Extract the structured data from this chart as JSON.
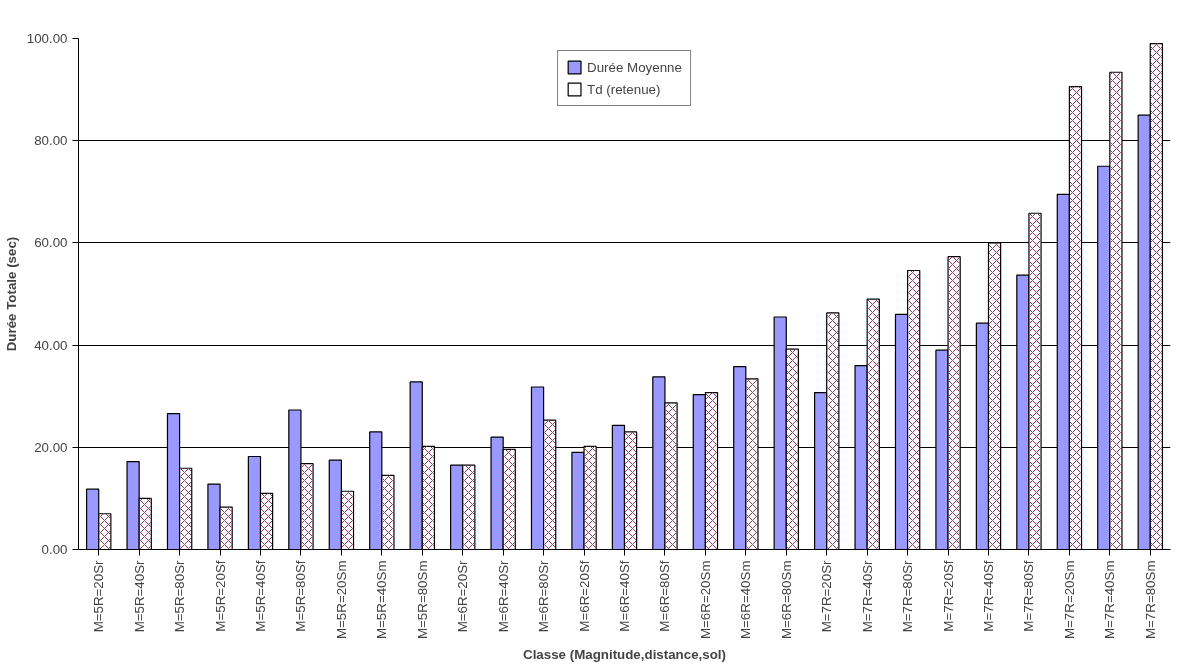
{
  "chart_data": {
    "type": "bar",
    "xlabel": "Classe (Magnitude,distance,sol)",
    "ylabel": "Durée Totale (sec)",
    "categories": [
      "M=5R=20Sr",
      "M=5R=40Sr",
      "M=5R=80Sr",
      "M=5R=20Sf",
      "M=5R=40Sf",
      "M=5R=80Sf",
      "M=5R=20Sm",
      "M=5R=40Sm",
      "M=5R=80Sm",
      "M=6R=20Sr",
      "M=6R=40Sr",
      "M=6R=80Sr",
      "M=6R=20Sf",
      "M=6R=40Sf",
      "M=6R=80Sf",
      "M=6R=20Sm",
      "M=6R=40Sm",
      "M=6R=80Sm",
      "M=7R=20Sr",
      "M=7R=40Sr",
      "M=7R=80Sr",
      "M=7R=20Sf",
      "M=7R=40Sf",
      "M=7R=80Sf",
      "M=7R=20Sm",
      "M=7R=40Sm",
      "M=7R=80Sm"
    ],
    "series": [
      {
        "name": "Durée Moyenne",
        "color": "#9999ff",
        "values": [
          11.8,
          17.2,
          26.6,
          12.8,
          18.2,
          27.3,
          17.5,
          23.0,
          32.8,
          16.5,
          22.0,
          31.8,
          19.0,
          24.3,
          33.8,
          30.3,
          35.8,
          45.5,
          30.7,
          36.0,
          46.0,
          39.0,
          44.3,
          53.7,
          69.5,
          75.0,
          85.0
        ]
      },
      {
        "name": "Td (retenue)",
        "color": "#ffffff",
        "values": [
          7.0,
          10.0,
          15.9,
          8.3,
          11.0,
          16.8,
          11.4,
          14.5,
          20.2,
          16.5,
          19.6,
          25.3,
          20.2,
          23.0,
          28.7,
          30.7,
          33.4,
          39.2,
          46.3,
          49.0,
          54.6,
          57.3,
          60.0,
          65.8,
          90.6,
          93.4,
          99.0
        ]
      }
    ],
    "ylim": [
      0,
      100
    ],
    "yticks": [
      {
        "value": 0,
        "label": "0.00"
      },
      {
        "value": 20,
        "label": "20.00"
      },
      {
        "value": 40,
        "label": "40.00"
      },
      {
        "value": 60,
        "label": "60.00"
      },
      {
        "value": 80,
        "label": "80.00"
      },
      {
        "value": 100,
        "label": "100.00"
      }
    ],
    "grid": "y",
    "legend": "top"
  }
}
